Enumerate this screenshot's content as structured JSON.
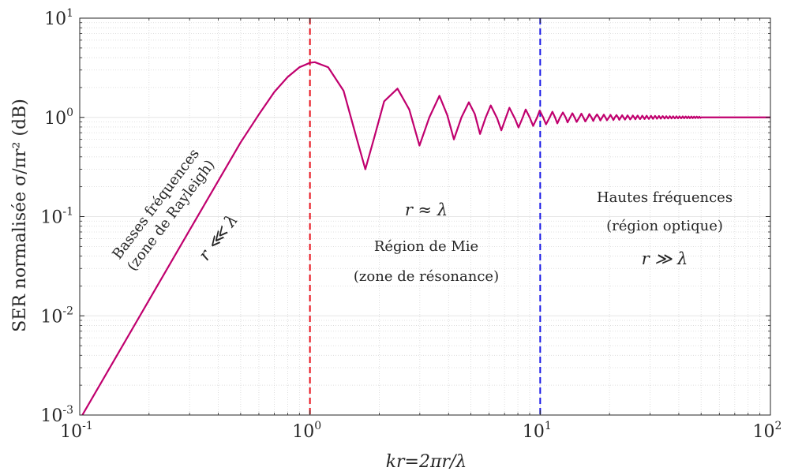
{
  "chart_data": {
    "type": "line",
    "x_scale": "log",
    "y_scale": "log",
    "xlim": [
      0.1,
      100
    ],
    "ylim": [
      0.001,
      10
    ],
    "grid": true,
    "xlabel": "kr=2πr/λ",
    "ylabel": "SER normalisée σ/πr² (dB)",
    "x_ticks": [
      {
        "value": 0.1,
        "base": "10",
        "exp": "-1"
      },
      {
        "value": 1,
        "base": "10",
        "exp": "0"
      },
      {
        "value": 10,
        "base": "10",
        "exp": "1"
      },
      {
        "value": 100,
        "base": "10",
        "exp": "2"
      }
    ],
    "y_ticks": [
      {
        "value": 0.001,
        "base": "10",
        "exp": "-3"
      },
      {
        "value": 0.01,
        "base": "10",
        "exp": "-2"
      },
      {
        "value": 0.1,
        "base": "10",
        "exp": "-1"
      },
      {
        "value": 1,
        "base": "10",
        "exp": "0"
      },
      {
        "value": 10,
        "base": "10",
        "exp": "1"
      }
    ],
    "series": [
      {
        "color": "#c0006e",
        "points": [
          [
            0.1,
            0.0009
          ],
          [
            0.2,
            0.0144
          ],
          [
            0.3,
            0.073
          ],
          [
            0.4,
            0.23
          ],
          [
            0.5,
            0.56
          ],
          [
            0.6,
            1.07
          ],
          [
            0.7,
            1.8
          ],
          [
            0.8,
            2.55
          ],
          [
            0.9,
            3.2
          ],
          [
            1.0,
            3.55
          ],
          [
            1.05,
            3.6
          ],
          [
            1.2,
            3.2
          ],
          [
            1.4,
            1.85
          ],
          [
            1.6,
            0.6
          ],
          [
            1.74,
            0.3
          ],
          [
            1.9,
            0.62
          ],
          [
            2.1,
            1.45
          ],
          [
            2.4,
            1.95
          ],
          [
            2.7,
            1.2
          ],
          [
            2.99,
            0.52
          ],
          [
            3.3,
            1.0
          ],
          [
            3.65,
            1.65
          ],
          [
            3.95,
            1.05
          ],
          [
            4.22,
            0.6
          ],
          [
            4.55,
            1.0
          ],
          [
            4.9,
            1.42
          ],
          [
            5.2,
            1.08
          ],
          [
            5.48,
            0.68
          ],
          [
            5.8,
            1.0
          ],
          [
            6.1,
            1.32
          ],
          [
            6.5,
            0.98
          ],
          [
            6.78,
            0.74
          ],
          [
            7.1,
            1.0
          ],
          [
            7.35,
            1.25
          ],
          [
            7.8,
            0.95
          ],
          [
            8.05,
            0.79
          ],
          [
            8.4,
            1.0
          ],
          [
            8.65,
            1.2
          ],
          [
            9.0,
            1.0
          ],
          [
            9.32,
            0.82
          ],
          [
            9.7,
            1.0
          ],
          [
            9.95,
            1.17
          ],
          [
            10.3,
            1.0
          ],
          [
            10.6,
            0.85
          ],
          [
            11.0,
            1.0
          ],
          [
            11.3,
            1.14
          ],
          [
            11.6,
            1.0
          ],
          [
            11.87,
            0.87
          ],
          [
            12.2,
            1.0
          ],
          [
            12.55,
            1.12
          ],
          [
            12.9,
            1.0
          ],
          [
            13.15,
            0.89
          ],
          [
            13.5,
            1.0
          ],
          [
            13.8,
            1.1
          ],
          [
            14.1,
            1.0
          ],
          [
            14.4,
            0.9
          ],
          [
            14.8,
            1.0
          ],
          [
            15.1,
            1.09
          ],
          [
            15.4,
            1.0
          ],
          [
            15.7,
            0.91
          ],
          [
            16.1,
            1.0
          ],
          [
            16.35,
            1.08
          ],
          [
            16.7,
            1.0
          ],
          [
            17.0,
            0.92
          ],
          [
            17.3,
            1.0
          ],
          [
            17.65,
            1.07
          ],
          [
            18.0,
            1.0
          ],
          [
            18.25,
            0.93
          ],
          [
            18.6,
            1.0
          ],
          [
            18.9,
            1.065
          ],
          [
            19.2,
            1.0
          ],
          [
            19.5,
            0.935
          ],
          [
            19.9,
            1.0
          ],
          [
            20.2,
            1.06
          ],
          [
            20.5,
            1.0
          ],
          [
            20.8,
            0.94
          ],
          [
            21.1,
            1.0
          ],
          [
            21.45,
            1.055
          ],
          [
            21.8,
            1.0
          ],
          [
            22.05,
            0.945
          ],
          [
            22.4,
            1.0
          ],
          [
            22.7,
            1.05
          ],
          [
            23.0,
            1.0
          ],
          [
            23.35,
            0.95
          ],
          [
            23.7,
            1.0
          ],
          [
            23.95,
            1.047
          ],
          [
            24.3,
            1.0
          ],
          [
            24.6,
            0.953
          ],
          [
            25.0,
            1.0
          ],
          [
            25.25,
            1.045
          ],
          [
            25.6,
            1.0
          ],
          [
            25.9,
            0.956
          ],
          [
            26.2,
            1.0
          ],
          [
            26.5,
            1.042
          ],
          [
            26.8,
            1.0
          ],
          [
            27.15,
            0.96
          ],
          [
            27.5,
            1.0
          ],
          [
            27.75,
            1.04
          ],
          [
            28.1,
            1.0
          ],
          [
            28.4,
            0.962
          ],
          [
            28.7,
            1.0
          ],
          [
            29.0,
            1.038
          ],
          [
            29.3,
            1.0
          ],
          [
            29.65,
            0.965
          ],
          [
            30.0,
            1.0
          ],
          [
            30.3,
            1.036
          ],
          [
            30.6,
            1.0
          ],
          [
            30.9,
            0.967
          ],
          [
            31.2,
            1.0
          ],
          [
            31.55,
            1.034
          ],
          [
            31.9,
            1.0
          ],
          [
            32.15,
            0.969
          ],
          [
            32.5,
            1.0
          ],
          [
            32.8,
            1.032
          ],
          [
            33.1,
            1.0
          ],
          [
            33.4,
            0.971
          ],
          [
            33.7,
            1.0
          ],
          [
            34.05,
            1.03
          ],
          [
            34.4,
            1.0
          ],
          [
            34.7,
            0.973
          ],
          [
            35.0,
            1.0
          ],
          [
            35.3,
            1.028
          ],
          [
            35.6,
            1.0
          ],
          [
            35.95,
            0.975
          ],
          [
            36.3,
            1.0
          ],
          [
            36.55,
            1.027
          ],
          [
            36.9,
            1.0
          ],
          [
            37.2,
            0.976
          ],
          [
            37.5,
            1.0
          ],
          [
            37.8,
            1.026
          ],
          [
            38.1,
            1.0
          ],
          [
            38.45,
            0.977
          ],
          [
            38.8,
            1.0
          ],
          [
            39.05,
            1.024
          ],
          [
            39.4,
            1.0
          ],
          [
            39.7,
            0.978
          ],
          [
            40.0,
            1.0
          ],
          [
            40.3,
            1.023
          ],
          [
            40.6,
            1.0
          ],
          [
            40.95,
            0.979
          ],
          [
            41.3,
            1.0
          ],
          [
            41.6,
            1.022
          ],
          [
            41.9,
            1.0
          ],
          [
            42.2,
            0.98
          ],
          [
            42.5,
            1.0
          ],
          [
            42.85,
            1.021
          ],
          [
            43.2,
            1.0
          ],
          [
            43.45,
            0.981
          ],
          [
            43.8,
            1.0
          ],
          [
            44.1,
            1.02
          ],
          [
            44.4,
            1.0
          ],
          [
            44.7,
            0.982
          ],
          [
            45.0,
            1.0
          ],
          [
            45.35,
            1.019
          ],
          [
            45.7,
            1.0
          ],
          [
            45.95,
            0.983
          ],
          [
            46.3,
            1.0
          ],
          [
            46.6,
            1.018
          ],
          [
            46.9,
            1.0
          ],
          [
            47.2,
            0.984
          ],
          [
            47.5,
            1.0
          ],
          [
            47.85,
            1.017
          ],
          [
            48.2,
            1.0
          ],
          [
            48.5,
            0.985
          ],
          [
            48.8,
            1.0
          ],
          [
            49.1,
            1.016
          ],
          [
            49.4,
            1.0
          ],
          [
            49.7,
            0.986
          ],
          [
            50.0,
            1.0
          ],
          [
            55.0,
            1.0
          ],
          [
            60.0,
            1.0
          ],
          [
            70.0,
            1.0
          ],
          [
            80.0,
            1.0
          ],
          [
            90.0,
            1.0
          ],
          [
            100.0,
            1.0
          ]
        ]
      }
    ],
    "vlines": [
      {
        "x": 1,
        "color": "#e8101a",
        "style": "dashed"
      },
      {
        "x": 10,
        "color": "#1a1ae8",
        "style": "dashed"
      }
    ],
    "annotations": {
      "rayleigh_title": "Basses fréquences",
      "rayleigh_sub": "(zone de Rayleigh)",
      "rayleigh_math": "r ⋘ λ",
      "mie_math": "r ≈ λ",
      "mie_title": "Région de Mie",
      "mie_sub": "(zone de résonance)",
      "optical_title": "Hautes fréquences",
      "optical_sub": "(région optique)",
      "optical_math": "r ≫ λ"
    }
  }
}
